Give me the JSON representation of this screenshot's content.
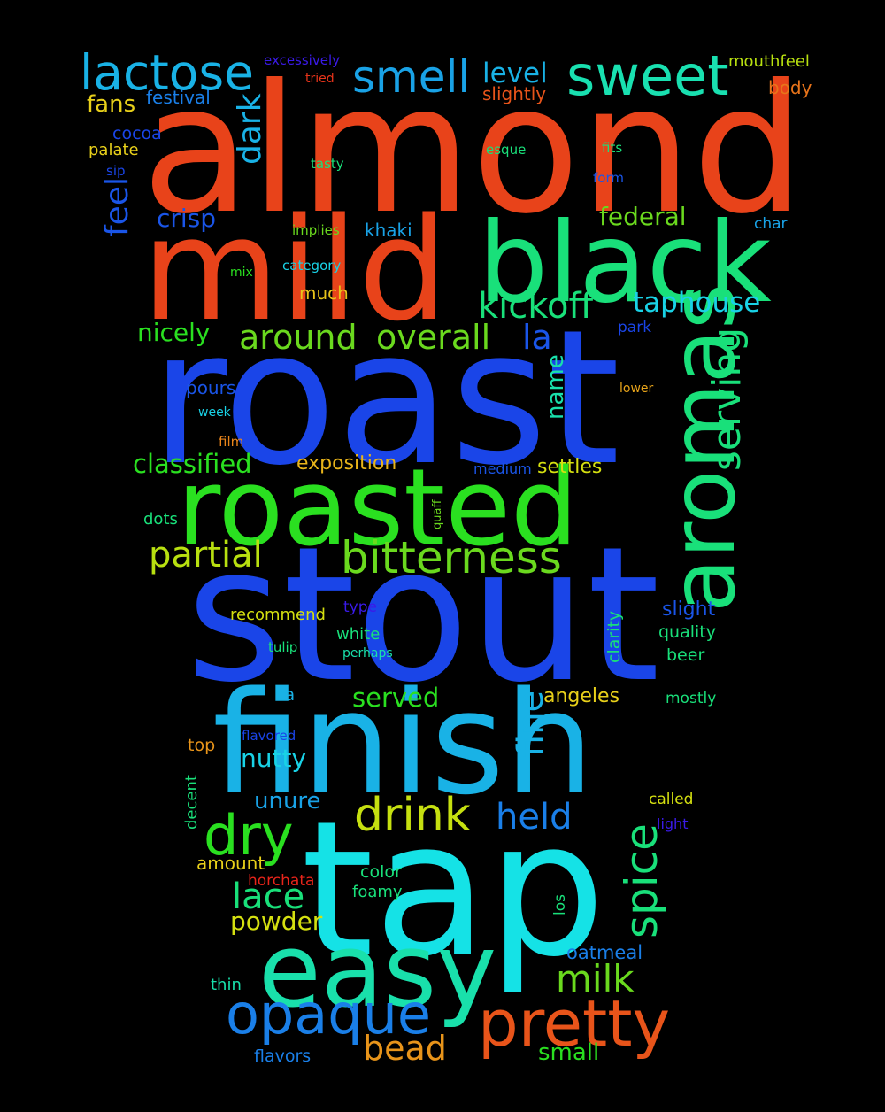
{
  "words": [
    {
      "text": "almond",
      "color": "#e8431a"
    },
    {
      "text": "stout",
      "color": "#1a45e8"
    },
    {
      "text": "roast",
      "color": "#1a45e8"
    },
    {
      "text": "tap",
      "color": "#15e2e6"
    },
    {
      "text": "finish",
      "color": "#19b2e6"
    },
    {
      "text": "mild",
      "color": "#e8431a"
    },
    {
      "text": "black",
      "color": "#19e07a"
    },
    {
      "text": "roasted",
      "color": "#2ae020"
    },
    {
      "text": "easy",
      "color": "#19e0ab"
    },
    {
      "text": "aromas",
      "color": "#19e07a"
    },
    {
      "text": "pretty",
      "color": "#e8541a"
    },
    {
      "text": "opaque",
      "color": "#1a7fe8"
    },
    {
      "text": "bitterness",
      "color": "#6ad91e"
    },
    {
      "text": "drink",
      "color": "#c6e010"
    },
    {
      "text": "dry",
      "color": "#2ae020"
    },
    {
      "text": "sweet",
      "color": "#19e0b0"
    },
    {
      "text": "lactose",
      "color": "#19b2e6"
    },
    {
      "text": "smell",
      "color": "#19a2e6"
    },
    {
      "text": "serving",
      "color": "#19e07a"
    },
    {
      "text": "spice",
      "color": "#19e07a"
    },
    {
      "text": "kickoff",
      "color": "#19e07a"
    },
    {
      "text": "milk",
      "color": "#6ad91e"
    },
    {
      "text": "held",
      "color": "#1a7fe8"
    },
    {
      "text": "partial",
      "color": "#b8e010"
    },
    {
      "text": "around",
      "color": "#6ad91e"
    },
    {
      "text": "overall",
      "color": "#6ad91e"
    },
    {
      "text": "fine",
      "color": "#19b2e6"
    },
    {
      "text": "lace",
      "color": "#19e07a"
    },
    {
      "text": "bead",
      "color": "#e8941a"
    },
    {
      "text": "dark",
      "color": "#19b2e6"
    },
    {
      "text": "feel",
      "color": "#1a55e8"
    },
    {
      "text": "la",
      "color": "#1a55e8"
    },
    {
      "text": "taphouse",
      "color": "#19d2e6"
    },
    {
      "text": "classified",
      "color": "#2ae020"
    },
    {
      "text": "level",
      "color": "#19b2e6"
    },
    {
      "text": "nicely",
      "color": "#2ae020"
    },
    {
      "text": "crisp",
      "color": "#1a55e8"
    },
    {
      "text": "federal",
      "color": "#6ad91e"
    },
    {
      "text": "nutty",
      "color": "#19d2e6"
    },
    {
      "text": "name",
      "color": "#19e0ab"
    },
    {
      "text": "small",
      "color": "#2ae020"
    },
    {
      "text": "served",
      "color": "#2ae020"
    },
    {
      "text": "powder",
      "color": "#d5e010"
    },
    {
      "text": "fans",
      "color": "#e8d01a"
    },
    {
      "text": "unure",
      "color": "#19a2e6"
    },
    {
      "text": "exposition",
      "color": "#e8b41a"
    },
    {
      "text": "settles",
      "color": "#d5e010"
    },
    {
      "text": "angeles",
      "color": "#e8d01a"
    },
    {
      "text": "slight",
      "color": "#1a55e8"
    },
    {
      "text": "body",
      "color": "#e8741a"
    },
    {
      "text": "oatmeal",
      "color": "#1a7fe8"
    },
    {
      "text": "mouthfeel",
      "color": "#b8e010"
    },
    {
      "text": "slightly",
      "color": "#e8541a"
    },
    {
      "text": "festival",
      "color": "#1a7fe8"
    },
    {
      "text": "pours",
      "color": "#1a55e8"
    },
    {
      "text": "much",
      "color": "#e8c41a"
    },
    {
      "text": "quality",
      "color": "#19e07a"
    },
    {
      "text": "beer",
      "color": "#19e07a"
    },
    {
      "text": "cocoa",
      "color": "#1a45e8"
    },
    {
      "text": "palate",
      "color": "#e8d01a"
    },
    {
      "text": "khaki",
      "color": "#19a2e6"
    },
    {
      "text": "amount",
      "color": "#e8d01a"
    },
    {
      "text": "color",
      "color": "#19e07a"
    },
    {
      "text": "foamy",
      "color": "#19e07a"
    },
    {
      "text": "clarity",
      "color": "#19e07a"
    },
    {
      "text": "recommend",
      "color": "#d5e010"
    },
    {
      "text": "white",
      "color": "#19e07a"
    },
    {
      "text": "thin",
      "color": "#19e0ab"
    },
    {
      "text": "flavors",
      "color": "#1a7fe8"
    },
    {
      "text": "mostly",
      "color": "#19e07a"
    },
    {
      "text": "called",
      "color": "#d5e010"
    },
    {
      "text": "top",
      "color": "#e8941a"
    },
    {
      "text": "decent",
      "color": "#19e07a"
    },
    {
      "text": "ca",
      "color": "#19b2e6"
    },
    {
      "text": "medium",
      "color": "#1a55e8"
    },
    {
      "text": "los",
      "color": "#19e07a"
    },
    {
      "text": "excessively",
      "color": "#3a1ae8"
    },
    {
      "text": "tried",
      "color": "#e8341a"
    },
    {
      "text": "esque",
      "color": "#19e07a"
    },
    {
      "text": "fits",
      "color": "#19e07a"
    },
    {
      "text": "form",
      "color": "#1a55e8"
    },
    {
      "text": "tasty",
      "color": "#19e07a"
    },
    {
      "text": "sip",
      "color": "#1a45e8"
    },
    {
      "text": "implies",
      "color": "#6ad91e"
    },
    {
      "text": "char",
      "color": "#19a2e6"
    },
    {
      "text": "category",
      "color": "#19d2e6"
    },
    {
      "text": "mix",
      "color": "#2ae020"
    },
    {
      "text": "park",
      "color": "#1a45e8"
    },
    {
      "text": "lower",
      "color": "#e8a41a"
    },
    {
      "text": "week",
      "color": "#19d2e6"
    },
    {
      "text": "film",
      "color": "#e8841a"
    },
    {
      "text": "dots",
      "color": "#19e07a"
    },
    {
      "text": "quaff",
      "color": "#6ad91e"
    },
    {
      "text": "type",
      "color": "#3a1ae8"
    },
    {
      "text": "tulip",
      "color": "#19e07a"
    },
    {
      "text": "perhaps",
      "color": "#19e0ab"
    },
    {
      "text": "flavored",
      "color": "#1a45e8"
    },
    {
      "text": "light",
      "color": "#3a1ae8"
    },
    {
      "text": "horchata",
      "color": "#e8241a"
    }
  ]
}
